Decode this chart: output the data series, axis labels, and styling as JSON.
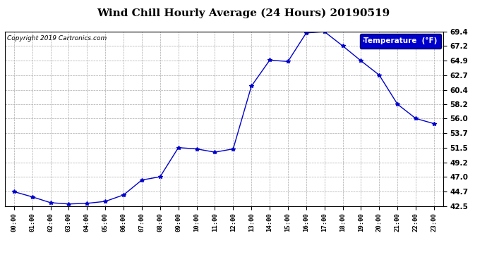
{
  "title": "Wind Chill Hourly Average (24 Hours) 20190519",
  "copyright": "Copyright 2019 Cartronics.com",
  "legend_label": "Temperature  (°F)",
  "x_labels": [
    "00:00",
    "01:00",
    "02:00",
    "03:00",
    "04:00",
    "05:00",
    "06:00",
    "07:00",
    "08:00",
    "09:00",
    "10:00",
    "11:00",
    "12:00",
    "13:00",
    "14:00",
    "15:00",
    "16:00",
    "17:00",
    "18:00",
    "19:00",
    "20:00",
    "21:00",
    "22:00",
    "23:00"
  ],
  "y_values": [
    44.7,
    43.9,
    43.0,
    42.8,
    42.9,
    43.2,
    44.2,
    46.5,
    47.0,
    51.5,
    51.3,
    50.8,
    51.3,
    61.0,
    65.0,
    64.8,
    69.2,
    69.4,
    67.2,
    64.9,
    62.7,
    58.2,
    56.0,
    55.2
  ],
  "ylim": [
    42.5,
    69.4
  ],
  "yticks": [
    42.5,
    44.7,
    47.0,
    49.2,
    51.5,
    53.7,
    56.0,
    58.2,
    60.4,
    62.7,
    64.9,
    67.2,
    69.4
  ],
  "line_color": "#0000CC",
  "marker": "*",
  "background_color": "#ffffff",
  "plot_bg_color": "#ffffff",
  "grid_color": "#aaaaaa",
  "title_fontsize": 11,
  "legend_bg_color": "#0000CC",
  "legend_text_color": "#ffffff"
}
